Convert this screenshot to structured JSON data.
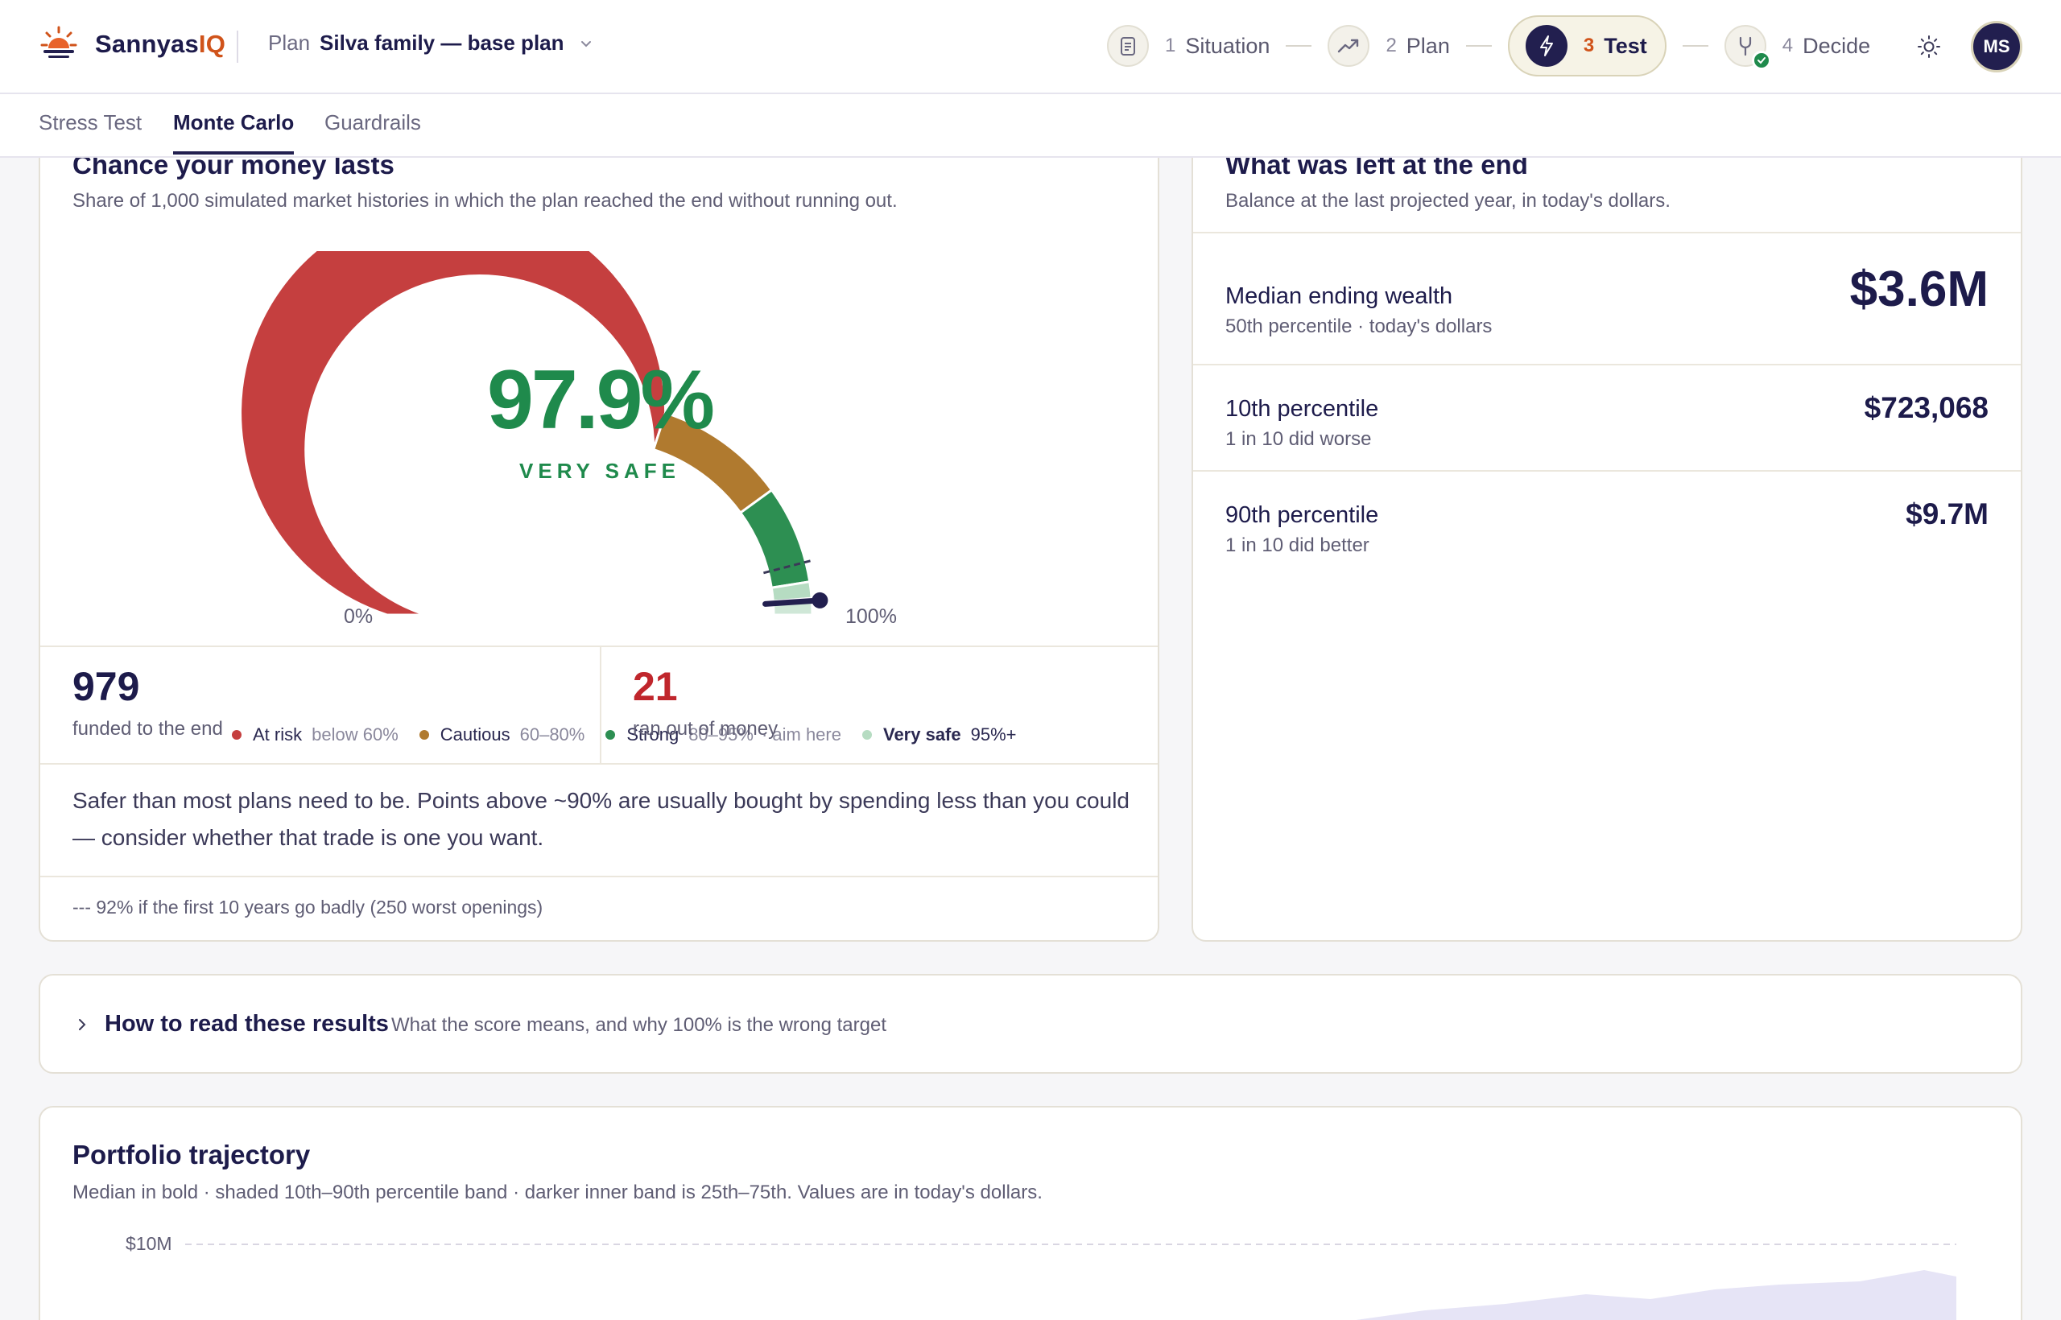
{
  "app": {
    "brand_prefix": "Sannyas",
    "brand_suffix": "IQ"
  },
  "plan_selector": {
    "label": "Plan",
    "name": "Silva family — base plan"
  },
  "steps": [
    {
      "num": "1",
      "label": "Situation",
      "icon": "clipboard-icon"
    },
    {
      "num": "2",
      "label": "Plan",
      "icon": "trend-icon"
    },
    {
      "num": "3",
      "label": "Test",
      "icon": "bolt-icon",
      "active": true
    },
    {
      "num": "4",
      "label": "Decide",
      "icon": "fork-icon",
      "complete": true
    }
  ],
  "user": {
    "initials": "MS"
  },
  "tabs": [
    "Stress Test",
    "Monte Carlo",
    "Guardrails"
  ],
  "active_tab": "Monte Carlo",
  "gauge": {
    "title": "Chance your money lasts",
    "subtitle": "Share of 1,000 simulated market histories in which the plan reached the end without running out.",
    "value_text": "97.9%",
    "value": 0.979,
    "rating": "VERY SAFE",
    "min_label": "0%",
    "max_label": "100%",
    "stress_value": 0.92,
    "legend": [
      {
        "name": "At risk",
        "range": "below 60%",
        "color": "#c53f3f"
      },
      {
        "name": "Cautious",
        "range": "60–80%",
        "color": "#b07a2f"
      },
      {
        "name": "Strong",
        "range": "80–95%",
        "extra": "· aim here",
        "color": "#2d8f52"
      },
      {
        "name": "Very safe",
        "range": "95%+",
        "color": "#b6dcc2"
      }
    ],
    "funded_count": "979",
    "funded_label": "funded to the end",
    "failed_count": "21",
    "failed_label": "ran out of money",
    "insight": "Safer than most plans need to be. Points above ~90% are usually bought by spending less than you could — consider whether that trade is one you want.",
    "footnote": "--- 92% if the first 10 years go badly (250 worst openings)"
  },
  "ending": {
    "title": "What was left at the end",
    "subtitle": "Balance at the last projected year, in today's dollars.",
    "rows": [
      {
        "label": "Median ending wealth",
        "sub": "50th percentile · today's dollars",
        "value": "$3.6M"
      },
      {
        "label": "10th percentile",
        "sub": "1 in 10 did worse",
        "value": "$723,068"
      },
      {
        "label": "90th percentile",
        "sub": "1 in 10 did better",
        "value": "$9.7M"
      }
    ]
  },
  "howto": {
    "title": "How to read these results",
    "subtitle": "What the score means, and why 100% is the wrong target"
  },
  "trajectory": {
    "title": "Portfolio trajectory",
    "subtitle": "Median in bold · shaded 10th–90th percentile band · darker inner band is 25th–75th. Values are in today's dollars.",
    "y_tick_top": "$10M"
  },
  "colors": {
    "navy": "#221f4f",
    "accent_orange": "#d0531a",
    "safe_green": "#1f8a4c",
    "risk_red": "#c53f3f"
  }
}
